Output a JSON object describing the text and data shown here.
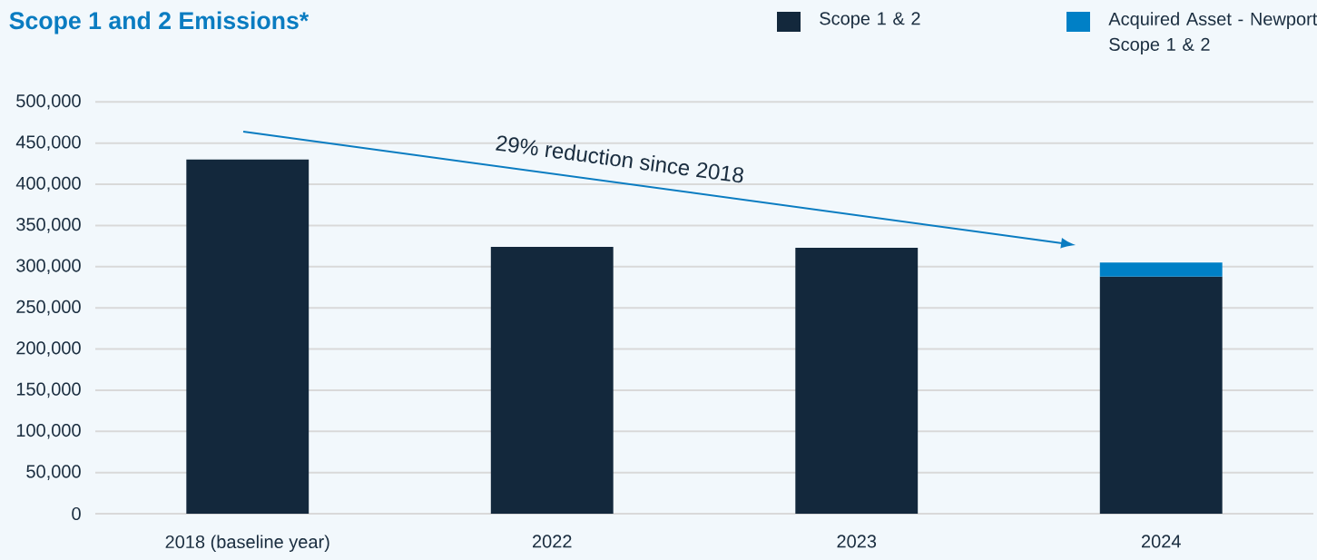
{
  "chart_data": {
    "type": "bar",
    "title": "Scope 1 and 2 Emissions*",
    "stacked": true,
    "categories": [
      "2018 (baseline year)",
      "2022",
      "2023",
      "2024"
    ],
    "series": [
      {
        "name": "Scope 1 & 2",
        "color": "#13283c",
        "values": [
          430000,
          324000,
          323000,
          288000
        ]
      },
      {
        "name": "Acquired Asset - Newport Scope 1 & 2",
        "color": "#0080c6",
        "values": [
          null,
          null,
          null,
          17000
        ]
      }
    ],
    "ylim": [
      0,
      500000
    ],
    "yticks": [
      {
        "value": 0,
        "label": "0"
      },
      {
        "value": 50000,
        "label": "50,000"
      },
      {
        "value": 100000,
        "label": "100,000"
      },
      {
        "value": 150000,
        "label": "150,000"
      },
      {
        "value": 200000,
        "label": "200,000"
      },
      {
        "value": 250000,
        "label": "250,000"
      },
      {
        "value": 300000,
        "label": "300,000"
      },
      {
        "value": 350000,
        "label": "350,000"
      },
      {
        "value": 400000,
        "label": "400,000"
      },
      {
        "value": 450000,
        "label": "450,000"
      },
      {
        "value": 500000,
        "label": "500,000"
      }
    ],
    "grid": "y",
    "legend": "top right",
    "annotations": [
      "29% reduction since 2018"
    ]
  }
}
